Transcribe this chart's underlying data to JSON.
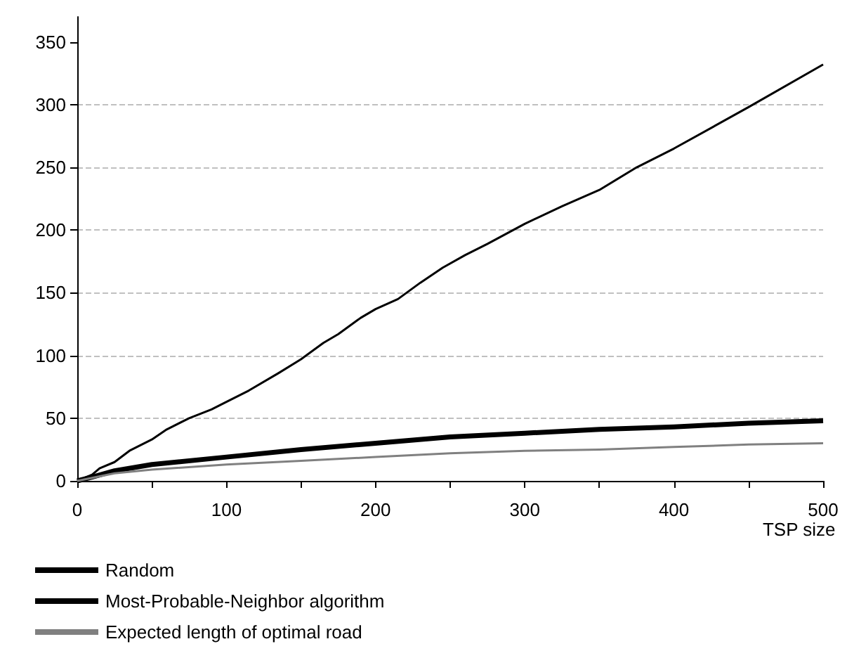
{
  "chart_data": {
    "type": "line",
    "xlabel": "TSP size",
    "xlim": [
      0,
      500
    ],
    "xticks": [
      0,
      {
        "value": 50,
        "label": null
      },
      100,
      {
        "value": 150,
        "label": null
      },
      200,
      {
        "value": 250,
        "label": null
      },
      300,
      {
        "value": 350,
        "label": null
      },
      400,
      {
        "value": 450,
        "label": null
      },
      500
    ],
    "ylim": [
      0,
      370
    ],
    "yticks": [
      0,
      50,
      100,
      150,
      200,
      250,
      300,
      350
    ],
    "grid": "y",
    "legend": "bottom left",
    "marker": "none",
    "line_style": "solid",
    "series": [
      {
        "name": "Random",
        "color": "#000000",
        "x": [
          0,
          10,
          15,
          25,
          35,
          50,
          60,
          75,
          90,
          100,
          115,
          135,
          150,
          165,
          175,
          190,
          200,
          215,
          230,
          245,
          260,
          275,
          300,
          325,
          350,
          375,
          400,
          450,
          500
        ],
        "values": [
          0,
          5,
          10,
          15,
          24,
          33,
          41,
          50,
          57,
          63,
          72,
          86,
          97,
          110,
          117,
          130,
          137,
          145,
          158,
          170,
          180,
          189,
          205,
          219,
          232,
          250,
          265,
          298,
          332
        ]
      },
      {
        "name": "Most-Probable-Neighbor algorithm",
        "color": "#000000",
        "x": [
          0,
          10,
          25,
          50,
          100,
          150,
          200,
          250,
          300,
          350,
          400,
          450,
          500
        ],
        "values": [
          0,
          3,
          8,
          13,
          19,
          25,
          30,
          35,
          38,
          41,
          43,
          46,
          48
        ]
      },
      {
        "name": "Expected length of optimal road",
        "color": "#808080",
        "x": [
          0,
          25,
          50,
          100,
          150,
          200,
          250,
          300,
          350,
          400,
          450,
          500
        ],
        "values": [
          0,
          6,
          9,
          13,
          16,
          19,
          22,
          24,
          25,
          27,
          29,
          30
        ]
      }
    ]
  }
}
